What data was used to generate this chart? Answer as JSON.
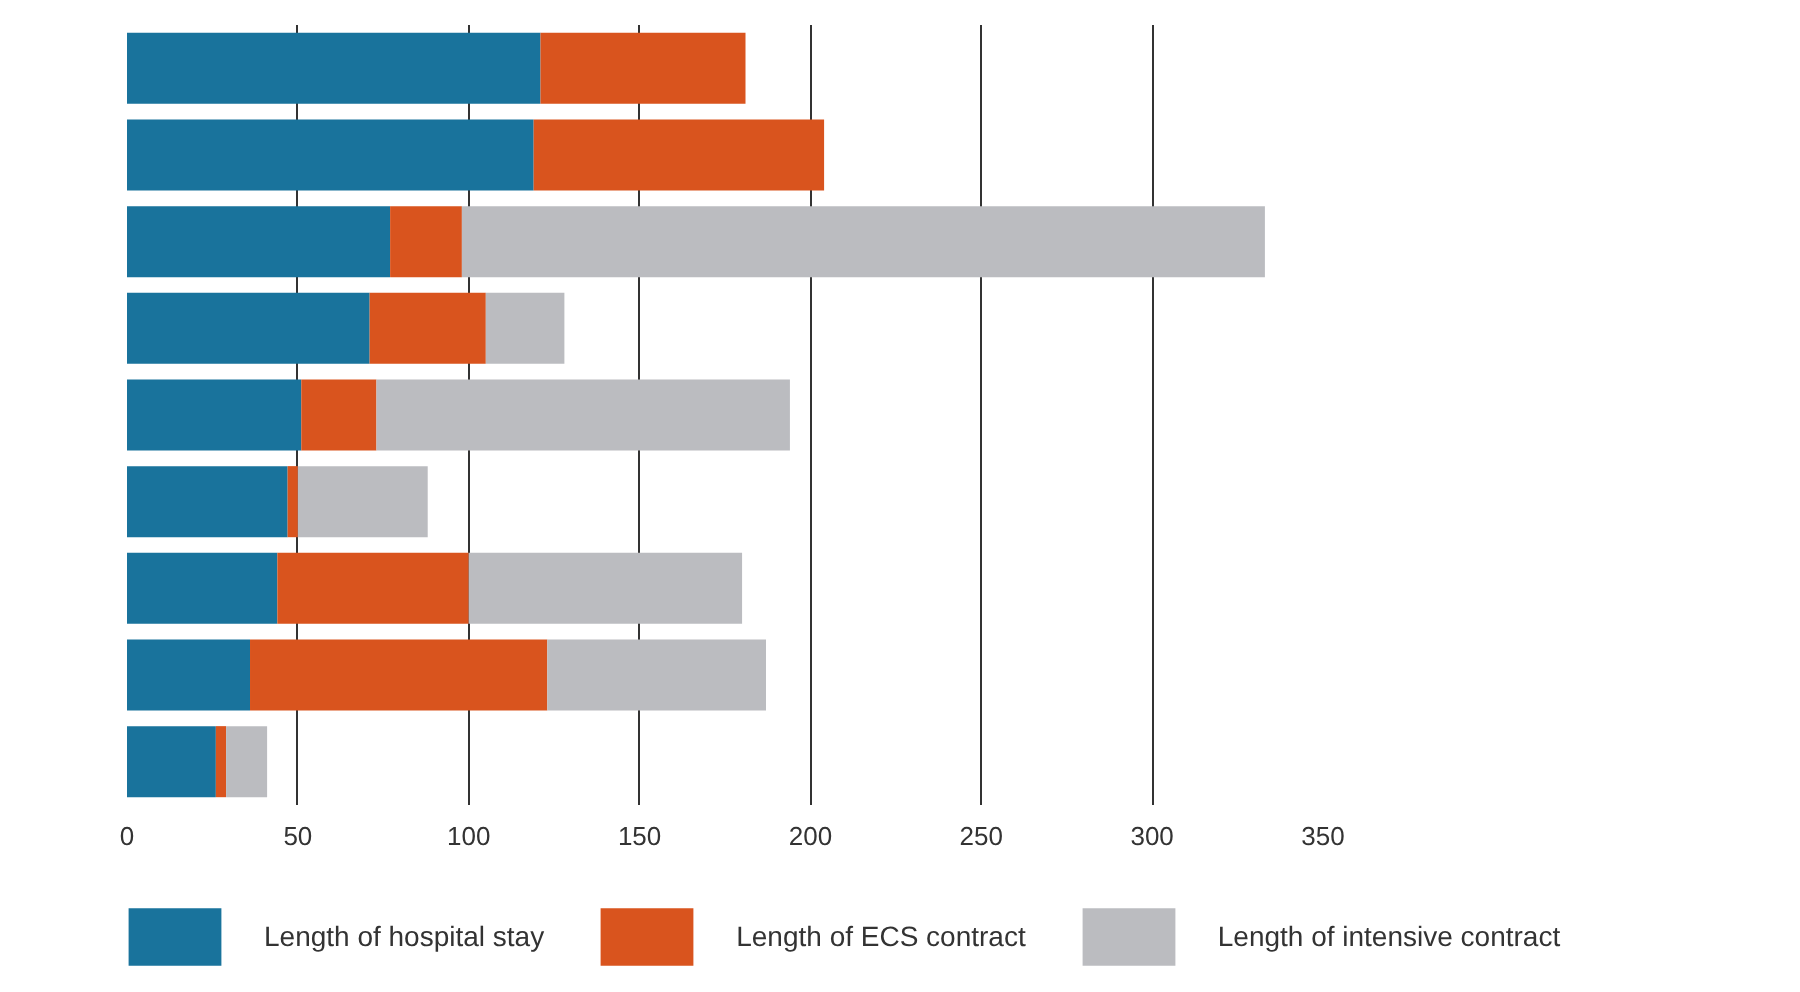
{
  "chart_data": {
    "type": "bar",
    "orientation": "horizontal",
    "stacked": true,
    "categories": [
      null,
      null,
      null,
      null,
      null,
      null,
      null,
      null,
      null
    ],
    "series": [
      {
        "name": "Length of hospital stay",
        "color": "#19739c",
        "values": [
          121,
          119,
          77,
          71,
          51,
          47,
          44,
          36,
          26
        ]
      },
      {
        "name": "Length of ECS contract",
        "color": "#d9541e",
        "values": [
          60,
          85,
          21,
          34,
          22,
          3,
          56,
          87,
          3
        ]
      },
      {
        "name": "Length of intensive contract",
        "color": "#bbbcc0",
        "values": [
          null,
          null,
          235,
          23,
          121,
          38,
          80,
          64,
          12
        ]
      }
    ],
    "xlim": [
      0,
      350
    ],
    "xticks": [
      0,
      50,
      100,
      150,
      200,
      250,
      300,
      350
    ],
    "grid": "x",
    "legend": "bottom",
    "tick_labels": "x"
  }
}
